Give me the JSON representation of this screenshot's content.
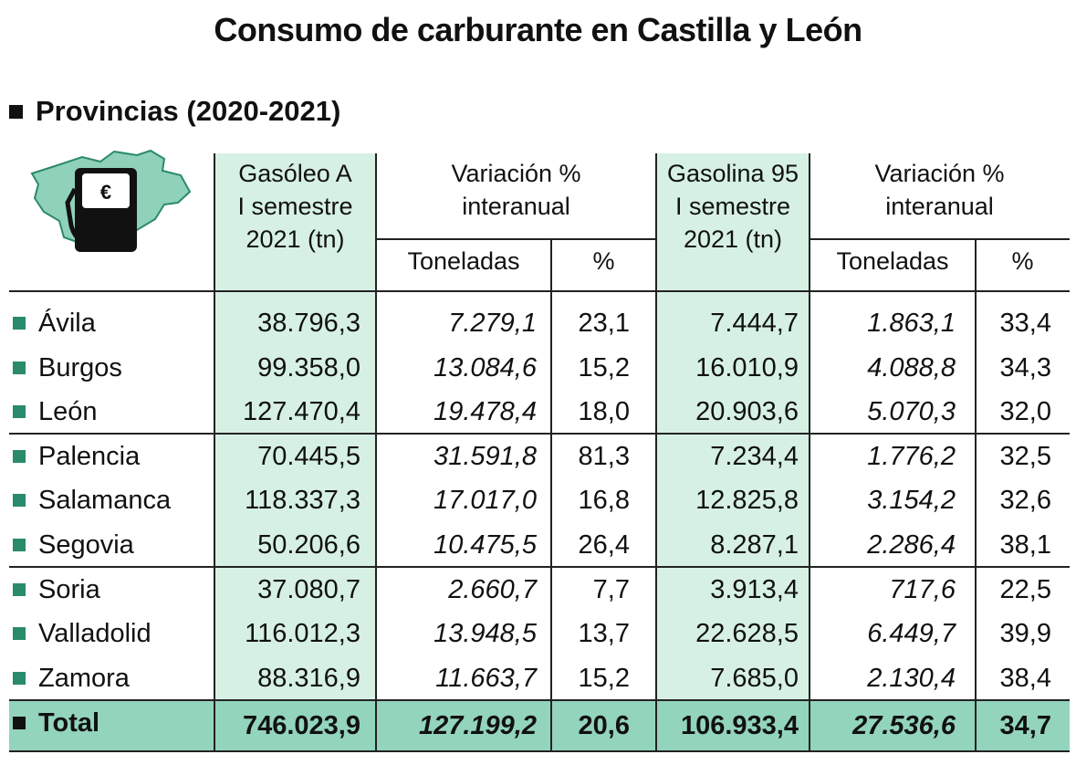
{
  "title": "Consumo de carburante en Castilla y León",
  "subtitle": "Provincias (2020-2021)",
  "colors": {
    "highlight": "#d6f1e4",
    "total_row": "#93d4bc",
    "bullet": "#2a8a6c",
    "map": "#8fd1b9"
  },
  "icons": [
    "castilla-leon-map-icon",
    "fuel-pump-icon",
    "euro-icon"
  ],
  "headers": {
    "gasoleo": [
      "Gasóleo A",
      "I semestre",
      "2021 (tn)"
    ],
    "var1": [
      "Variación %",
      "interanual"
    ],
    "gasolina": [
      "Gasolina 95",
      "I semestre",
      "2021 (tn)"
    ],
    "var2": [
      "Variación %",
      "interanual"
    ],
    "toneladas": "Toneladas",
    "pct": "%"
  },
  "chart_data": {
    "type": "table",
    "title": "Consumo de carburante en Castilla y León",
    "subtitle": "Provincias (2020-2021)",
    "columns": [
      "Provincia",
      "Gasóleo A I semestre 2021 (tn)",
      "Gasóleo Variación interanual Toneladas",
      "Gasóleo Variación interanual %",
      "Gasolina 95 I semestre 2021 (tn)",
      "Gasolina Variación interanual Toneladas",
      "Gasolina Variación interanual %"
    ],
    "rows": [
      [
        "Ávila",
        "38.796,3",
        "7.279,1",
        "23,1",
        "7.444,7",
        "1.863,1",
        "33,4"
      ],
      [
        "Burgos",
        "99.358,0",
        "13.084,6",
        "15,2",
        "16.010,9",
        "4.088,8",
        "34,3"
      ],
      [
        "León",
        "127.470,4",
        "19.478,4",
        "18,0",
        "20.903,6",
        "5.070,3",
        "32,0"
      ],
      [
        "Palencia",
        "70.445,5",
        "31.591,8",
        "81,3",
        "7.234,4",
        "1.776,2",
        "32,5"
      ],
      [
        "Salamanca",
        "118.337,3",
        "17.017,0",
        "16,8",
        "12.825,8",
        "3.154,2",
        "32,6"
      ],
      [
        "Segovia",
        "50.206,6",
        "10.475,5",
        "26,4",
        "8.287,1",
        "2.286,4",
        "38,1"
      ],
      [
        "Soria",
        "37.080,7",
        "2.660,7",
        "7,7",
        "3.913,4",
        "717,6",
        "22,5"
      ],
      [
        "Valladolid",
        "116.012,3",
        "13.948,5",
        "13,7",
        "22.628,5",
        "6.449,7",
        "39,9"
      ],
      [
        "Zamora",
        "88.316,9",
        "11.663,7",
        "15,2",
        "7.685,0",
        "2.130,4",
        "38,4"
      ]
    ],
    "total": [
      "Total",
      "746.023,9",
      "127.199,2",
      "20,6",
      "106.933,4",
      "27.536,6",
      "34,7"
    ]
  }
}
